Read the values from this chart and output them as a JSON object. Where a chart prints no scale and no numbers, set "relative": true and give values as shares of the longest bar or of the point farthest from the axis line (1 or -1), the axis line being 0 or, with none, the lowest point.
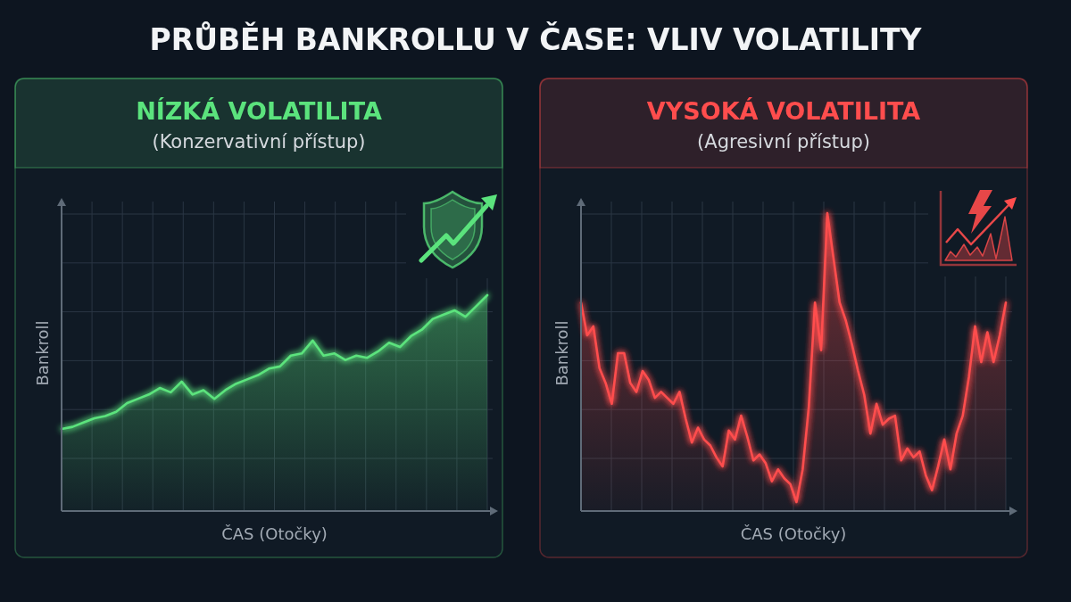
{
  "chart_data": [
    {
      "type": "other",
      "title": "PRŮBĚH BANKROLLU V ČASE: VLIV VOLATILITY"
    },
    {
      "type": "area",
      "title": "NÍZKÁ VOLATILITA",
      "subtitle": "(Konzervativní přístup)",
      "xlabel": "ČAS (Otočky)",
      "ylabel": "Bankroll",
      "relative": true,
      "grid": true,
      "color": "#5be37d",
      "categories": [
        null,
        null,
        null,
        null,
        null,
        null,
        null,
        null,
        null,
        null,
        null,
        null,
        null,
        null,
        null,
        null,
        null,
        null,
        null,
        null,
        null,
        null,
        null,
        null,
        null,
        null,
        null,
        null,
        null,
        null,
        null,
        null,
        null,
        null,
        null,
        null,
        null,
        null,
        null,
        null
      ],
      "values": [
        0.38,
        0.39,
        0.41,
        0.43,
        0.44,
        0.46,
        0.5,
        0.52,
        0.54,
        0.57,
        0.55,
        0.6,
        0.54,
        0.56,
        0.52,
        0.56,
        0.59,
        0.61,
        0.63,
        0.66,
        0.67,
        0.72,
        0.73,
        0.79,
        0.72,
        0.73,
        0.7,
        0.72,
        0.71,
        0.74,
        0.78,
        0.76,
        0.81,
        0.84,
        0.89,
        0.91,
        0.93,
        0.9,
        0.95,
        1.0
      ]
    },
    {
      "type": "area",
      "title": "VYSOKÁ VOLATILITA",
      "subtitle": "(Agresivní přístup)",
      "xlabel": "ČAS (Otočky)",
      "ylabel": "Bankroll",
      "relative": true,
      "grid": true,
      "color": "#ff4d4d",
      "categories": [
        null,
        null,
        null,
        null,
        null,
        null,
        null,
        null,
        null,
        null,
        null,
        null,
        null,
        null,
        null,
        null,
        null,
        null,
        null,
        null,
        null,
        null,
        null,
        null,
        null,
        null,
        null,
        null,
        null,
        null,
        null,
        null,
        null,
        null,
        null,
        null,
        null,
        null,
        null,
        null,
        null,
        null,
        null,
        null,
        null,
        null,
        null,
        null,
        null,
        null,
        null,
        null,
        null,
        null,
        null,
        null,
        null,
        null,
        null,
        null,
        null,
        null,
        null,
        null,
        null,
        null,
        null,
        null,
        null,
        null
      ],
      "values": [
        0.7,
        0.59,
        0.62,
        0.48,
        0.43,
        0.36,
        0.53,
        0.53,
        0.43,
        0.4,
        0.47,
        0.44,
        0.38,
        0.4,
        0.38,
        0.36,
        0.4,
        0.31,
        0.23,
        0.28,
        0.24,
        0.22,
        0.18,
        0.15,
        0.27,
        0.24,
        0.32,
        0.25,
        0.17,
        0.19,
        0.16,
        0.1,
        0.14,
        0.11,
        0.09,
        0.03,
        0.14,
        0.35,
        0.7,
        0.54,
        1.0,
        0.85,
        0.7,
        0.64,
        0.56,
        0.47,
        0.39,
        0.26,
        0.36,
        0.29,
        0.31,
        0.32,
        0.17,
        0.21,
        0.18,
        0.2,
        0.12,
        0.07,
        0.15,
        0.24,
        0.14,
        0.26,
        0.32,
        0.45,
        0.62,
        0.5,
        0.6,
        0.5,
        0.59,
        0.7
      ]
    }
  ]
}
